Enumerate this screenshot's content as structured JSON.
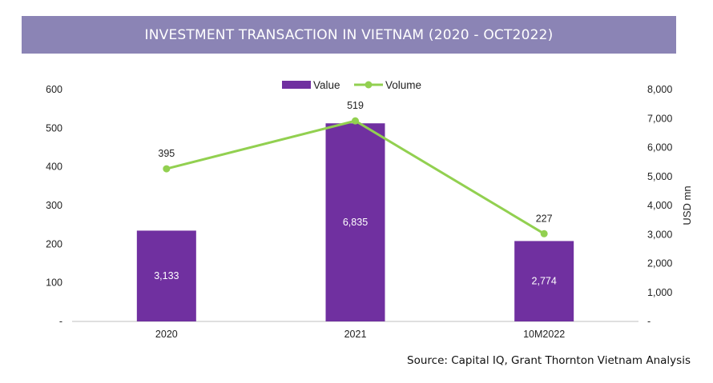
{
  "banner": {
    "title": "INVESTMENT TRANSACTION IN VIETNAM (2020 - OCT2022)"
  },
  "source": "Source: Capital IQ, Grant Thornton Vietnam Analysis",
  "chart_data": {
    "type": "bar",
    "categories": [
      "2020",
      "2021",
      "10M2022"
    ],
    "series": [
      {
        "name": "Value",
        "type": "bar",
        "axis": "right",
        "values": [
          3133,
          6835,
          2774
        ],
        "labels": [
          "3,133",
          "6,835",
          "2,774"
        ],
        "color": "#7030a0"
      },
      {
        "name": "Volume",
        "type": "line",
        "axis": "left",
        "values": [
          395,
          519,
          227
        ],
        "labels": [
          "395",
          "519",
          "227"
        ],
        "color": "#92d050"
      }
    ],
    "left_axis": {
      "ylim": [
        0,
        600
      ],
      "ticks": [
        "-",
        "100",
        "200",
        "300",
        "400",
        "500",
        "600"
      ]
    },
    "right_axis": {
      "label": "USD mn",
      "ylim": [
        0,
        8000
      ],
      "ticks": [
        "-",
        "1,000",
        "2,000",
        "3,000",
        "4,000",
        "5,000",
        "6,000",
        "7,000",
        "8,000"
      ]
    },
    "legend": {
      "position": "top",
      "items": [
        "Value",
        "Volume"
      ]
    },
    "grid": false
  }
}
